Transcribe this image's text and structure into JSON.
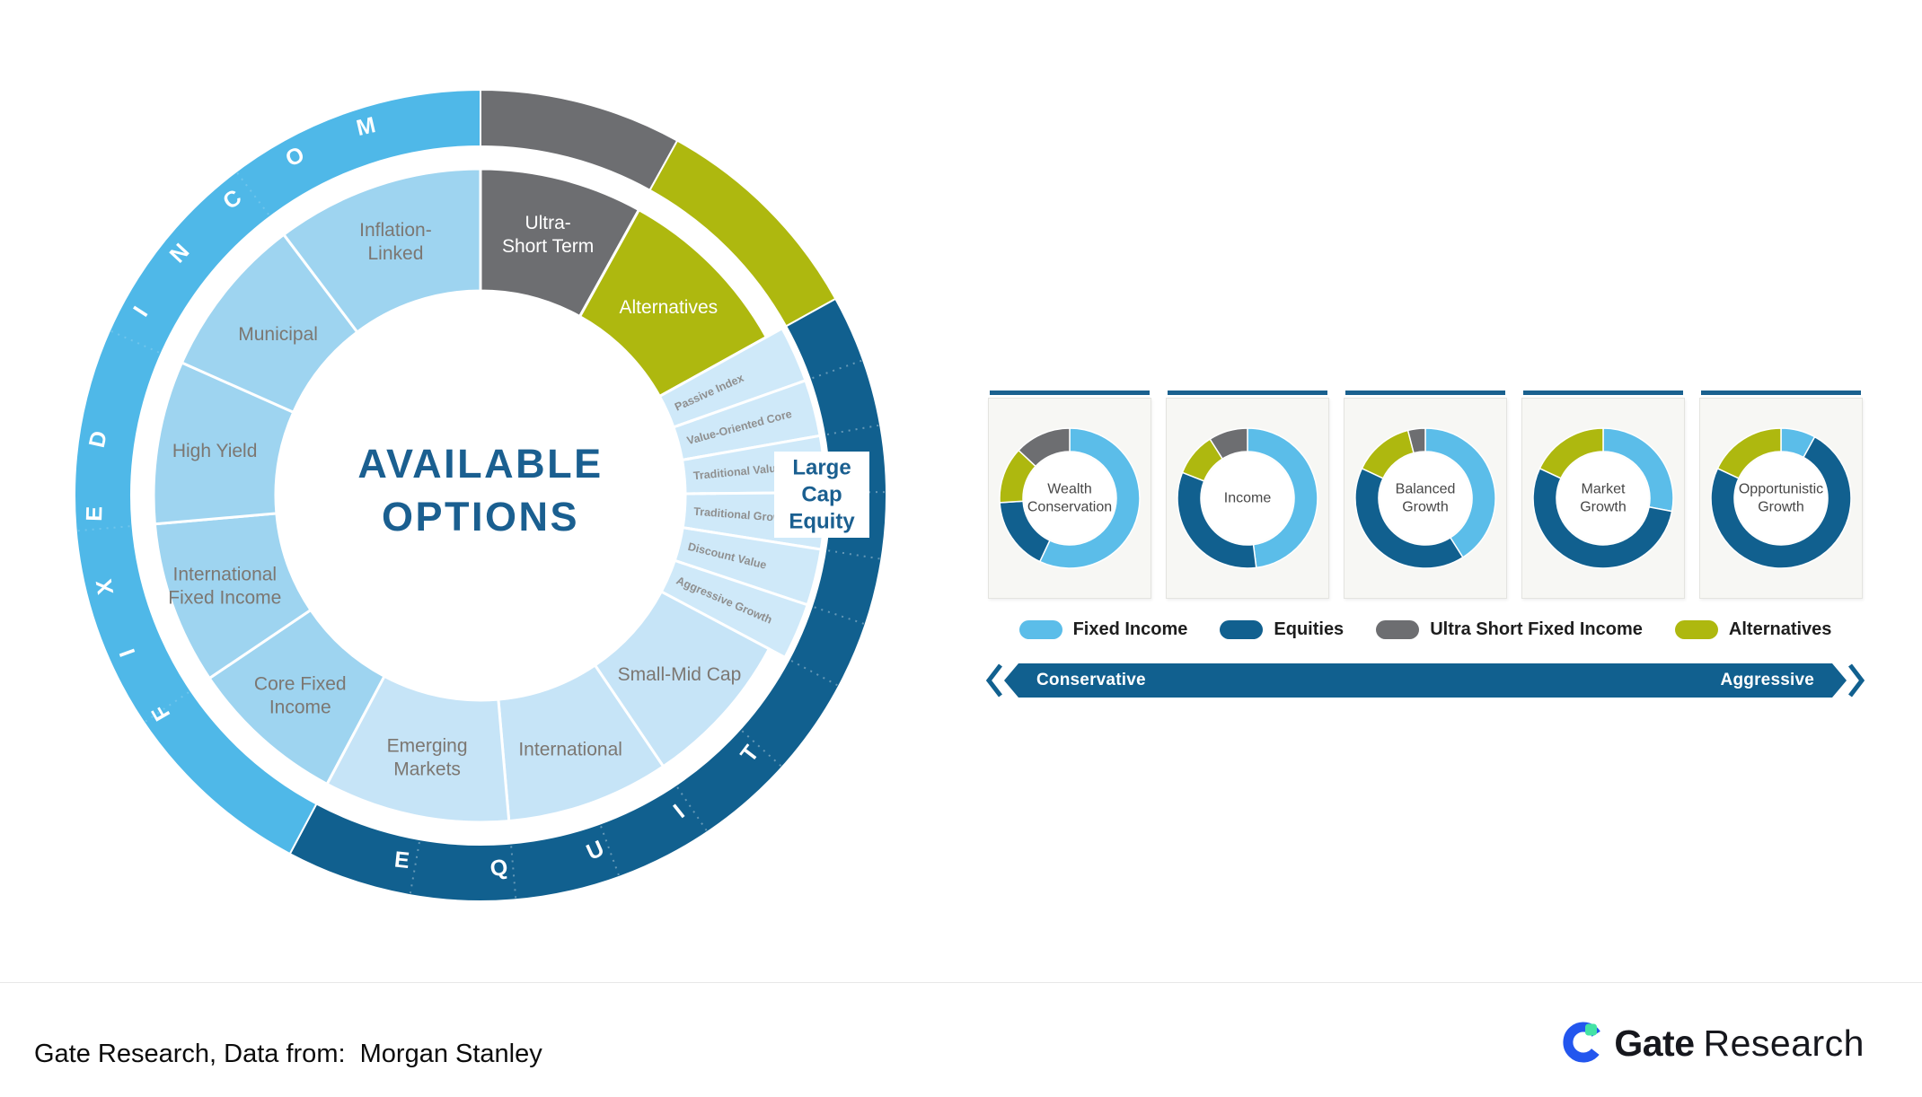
{
  "wheel": {
    "center_title_lines": [
      "AVAILABLE",
      "OPTIONS"
    ],
    "title_color": "#1a5f90",
    "outer_ring": [
      {
        "name": "ultra-short-term",
        "start": 0,
        "end": 29,
        "color": "#6d6e71"
      },
      {
        "name": "alternatives",
        "start": 29,
        "end": 61,
        "color": "#aeb80f"
      },
      {
        "name": "equity",
        "start": 61,
        "end": 208,
        "color": "#11608f"
      },
      {
        "name": "fixed-income",
        "start": 208,
        "end": 360,
        "color": "#4fb8e8"
      }
    ],
    "arc_labels": [
      {
        "name": "fixed-income-arc-label",
        "text": "FIXED INCOME",
        "color": "#ffffff"
      },
      {
        "name": "equity-arc-label",
        "text": "EQUITY",
        "color": "#ffffff"
      }
    ],
    "slices": [
      {
        "label_lines": [
          "Ultra-",
          "Short Term"
        ],
        "start": 0,
        "end": 29,
        "color": "#6d6e71",
        "text_color": "#ffffff",
        "label_r": 300
      },
      {
        "label_lines": [
          "Alternatives"
        ],
        "start": 29,
        "end": 61,
        "color": "#aeb80f",
        "text_color": "#ffffff",
        "label_r": 296
      },
      {
        "label_lines": [
          "Passive Index"
        ],
        "start": 61,
        "end": 70.5,
        "color": "#cfe9f9",
        "text_color": "#8f8f8f",
        "rotated": true,
        "extended": true
      },
      {
        "label_lines": [
          "Value-Oriented Core"
        ],
        "start": 70.5,
        "end": 80,
        "color": "#cfe9f9",
        "text_color": "#8f8f8f",
        "rotated": true,
        "extended": true
      },
      {
        "label_lines": [
          "Traditional Value"
        ],
        "start": 80,
        "end": 89.5,
        "color": "#cfe9f9",
        "text_color": "#8f8f8f",
        "rotated": true,
        "extended": true
      },
      {
        "label_lines": [
          "Traditional Growth"
        ],
        "start": 89.5,
        "end": 99,
        "color": "#cfe9f9",
        "text_color": "#8f8f8f",
        "rotated": true,
        "extended": true
      },
      {
        "label_lines": [
          "Discount Value"
        ],
        "start": 99,
        "end": 108.5,
        "color": "#cfe9f9",
        "text_color": "#8f8f8f",
        "rotated": true,
        "extended": true
      },
      {
        "label_lines": [
          "Aggressive Growth"
        ],
        "start": 108.5,
        "end": 118,
        "color": "#cfe9f9",
        "text_color": "#8f8f8f",
        "rotated": true,
        "extended": true
      },
      {
        "label_lines": [
          "Small-Mid Cap"
        ],
        "start": 118,
        "end": 146,
        "color": "#c6e4f7",
        "text_color": "#7c7772",
        "label_r": 298
      },
      {
        "label_lines": [
          "International"
        ],
        "start": 146,
        "end": 175,
        "color": "#c6e4f7",
        "text_color": "#7c7772",
        "label_r": 300
      },
      {
        "label_lines": [
          "Emerging",
          "Markets"
        ],
        "start": 175,
        "end": 208,
        "color": "#c6e4f7",
        "text_color": "#7c7772",
        "label_r": 298
      },
      {
        "label_lines": [
          "Core Fixed",
          "Income"
        ],
        "start": 208,
        "end": 236,
        "color": "#9ed4f0",
        "text_color": "#7c7772",
        "label_r": 300
      },
      {
        "label_lines": [
          "International",
          "Fixed Income"
        ],
        "start": 236,
        "end": 265,
        "color": "#9ed4f0",
        "text_color": "#7c7772",
        "label_r": 302
      },
      {
        "label_lines": [
          "High Yield"
        ],
        "start": 265,
        "end": 294,
        "color": "#9ed4f0",
        "text_color": "#7c7772",
        "label_r": 300
      },
      {
        "label_lines": [
          "Municipal"
        ],
        "start": 294,
        "end": 323,
        "color": "#9ed4f0",
        "text_color": "#7c7772",
        "label_r": 288
      },
      {
        "label_lines": [
          "Inflation-",
          "Linked"
        ],
        "start": 323,
        "end": 360,
        "color": "#9ed4f0",
        "text_color": "#7c7772",
        "label_r": 298
      }
    ],
    "callout": {
      "lines": [
        "Large",
        "Cap",
        "Equity"
      ],
      "color": "#1a5f90"
    }
  },
  "profiles": {
    "legend": {
      "items": [
        {
          "label": "Fixed Income",
          "color": "#5bbde9"
        },
        {
          "label": "Equities",
          "color": "#11608f"
        },
        {
          "label": "Ultra Short Fixed Income",
          "color": "#6d6e71"
        },
        {
          "label": "Alternatives",
          "color": "#aeb80f"
        }
      ]
    },
    "slider": {
      "left_label": "Conservative",
      "right_label": "Aggressive",
      "color": "#11608f"
    }
  },
  "chart_data": [
    {
      "type": "pie",
      "title": "Wealth Conservation",
      "title_lines": [
        "Wealth",
        "Conservation"
      ],
      "series": [
        {
          "name": "Fixed Income",
          "value": 57,
          "color": "#5bbde9"
        },
        {
          "name": "Equities",
          "value": 17,
          "color": "#11608f"
        },
        {
          "name": "Alternatives",
          "value": 13,
          "color": "#aeb80f"
        },
        {
          "name": "Ultra Short Fixed Income",
          "value": 13,
          "color": "#6d6e71"
        }
      ]
    },
    {
      "type": "pie",
      "title": "Income",
      "title_lines": [
        "Income"
      ],
      "series": [
        {
          "name": "Fixed Income",
          "value": 48,
          "color": "#5bbde9"
        },
        {
          "name": "Equities",
          "value": 33,
          "color": "#11608f"
        },
        {
          "name": "Alternatives",
          "value": 10,
          "color": "#aeb80f"
        },
        {
          "name": "Ultra Short Fixed Income",
          "value": 9,
          "color": "#6d6e71"
        }
      ]
    },
    {
      "type": "pie",
      "title": "Balanced Growth",
      "title_lines": [
        "Balanced",
        "Growth"
      ],
      "series": [
        {
          "name": "Fixed Income",
          "value": 41,
          "color": "#5bbde9"
        },
        {
          "name": "Equities",
          "value": 41,
          "color": "#11608f"
        },
        {
          "name": "Alternatives",
          "value": 14,
          "color": "#aeb80f"
        },
        {
          "name": "Ultra Short Fixed Income",
          "value": 4,
          "color": "#6d6e71"
        }
      ]
    },
    {
      "type": "pie",
      "title": "Market Growth",
      "title_lines": [
        "Market",
        "Growth"
      ],
      "series": [
        {
          "name": "Fixed Income",
          "value": 28,
          "color": "#5bbde9"
        },
        {
          "name": "Equities",
          "value": 54,
          "color": "#11608f"
        },
        {
          "name": "Alternatives",
          "value": 18,
          "color": "#aeb80f"
        },
        {
          "name": "Ultra Short Fixed Income",
          "value": 0,
          "color": "#6d6e71"
        }
      ]
    },
    {
      "type": "pie",
      "title": "Opportunistic Growth",
      "title_lines": [
        "Opportunistic",
        "Growth"
      ],
      "series": [
        {
          "name": "Fixed Income",
          "value": 8,
          "color": "#5bbde9"
        },
        {
          "name": "Equities",
          "value": 74,
          "color": "#11608f"
        },
        {
          "name": "Alternatives",
          "value": 18,
          "color": "#aeb80f"
        },
        {
          "name": "Ultra Short Fixed Income",
          "value": 0,
          "color": "#6d6e71"
        }
      ]
    }
  ],
  "footer": {
    "source_text": "Gate Research, Data from:  Morgan Stanley",
    "logo_bold": "Gate",
    "logo_light": "Research"
  }
}
